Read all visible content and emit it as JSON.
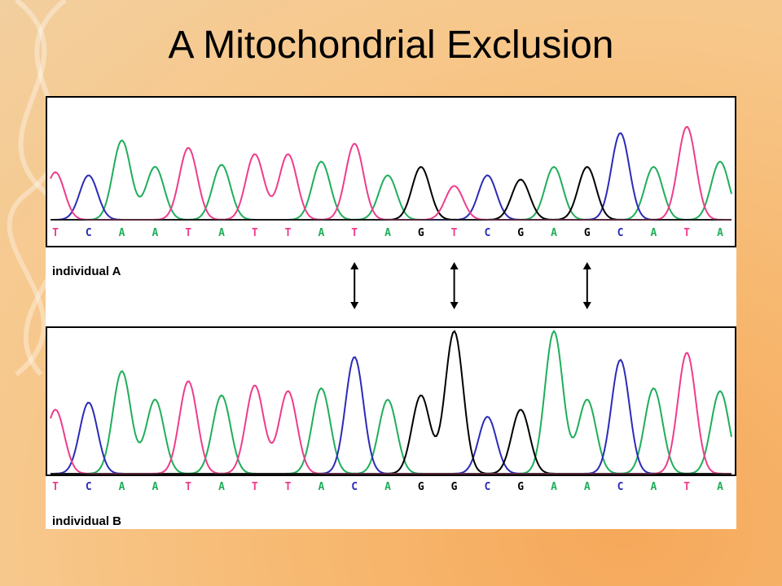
{
  "slide": {
    "title": "A Mitochondrial Exclusion"
  },
  "colors": {
    "A": "#1fae5a",
    "C": "#2b2bb8",
    "G": "#000000",
    "T": "#ee3c8c"
  },
  "chromatogram": {
    "panels": [
      {
        "label": "individual A",
        "bases": [
          "T",
          "C",
          "A",
          "A",
          "T",
          "A",
          "T",
          "T",
          "A",
          "T",
          "A",
          "G",
          "T",
          "C",
          "G",
          "A",
          "G",
          "C",
          "A",
          "T",
          "A"
        ],
        "peak_heights": [
          0.45,
          0.42,
          0.75,
          0.5,
          0.68,
          0.52,
          0.62,
          0.62,
          0.55,
          0.72,
          0.42,
          0.5,
          0.32,
          0.42,
          0.38,
          0.5,
          0.5,
          0.82,
          0.5,
          0.88,
          0.55
        ]
      },
      {
        "label": "individual B",
        "bases": [
          "T",
          "C",
          "A",
          "A",
          "T",
          "A",
          "T",
          "T",
          "A",
          "C",
          "A",
          "G",
          "G",
          "C",
          "G",
          "A",
          "A",
          "C",
          "A",
          "T",
          "A"
        ],
        "peak_heights": [
          0.45,
          0.5,
          0.72,
          0.52,
          0.65,
          0.55,
          0.62,
          0.58,
          0.6,
          0.82,
          0.52,
          0.55,
          1.0,
          0.4,
          0.45,
          1.0,
          0.52,
          0.8,
          0.6,
          0.85,
          0.58
        ]
      }
    ],
    "difference_positions": [
      9,
      12,
      16
    ]
  }
}
